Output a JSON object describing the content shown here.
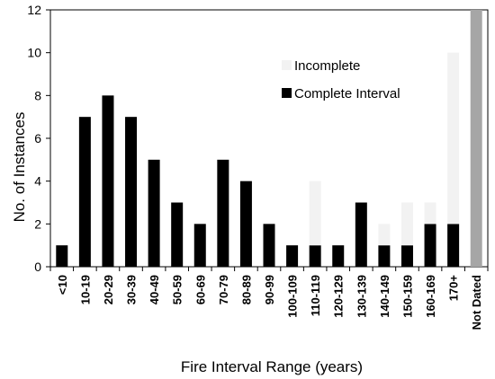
{
  "chart_data": {
    "type": "bar",
    "stacked": true,
    "title": "",
    "xlabel": "Fire Interval Range (years)",
    "ylabel": "No. of Instances",
    "ylim": [
      0,
      12
    ],
    "yticks": [
      0,
      2,
      4,
      6,
      8,
      10,
      12
    ],
    "grid": false,
    "legend_position": "top-right",
    "categories": [
      "<10",
      "10-19",
      "20-29",
      "30-39",
      "40-49",
      "50-59",
      "60-69",
      "70-79",
      "80-89",
      "90-99",
      "100-109",
      "110-119",
      "120-129",
      "130-139",
      "140-149",
      "150-159",
      "160-169",
      "170+",
      "Not Dated"
    ],
    "series": [
      {
        "name": "Complete Interval",
        "color": "#000000",
        "values": [
          1,
          7,
          8,
          7,
          5,
          3,
          2,
          5,
          4,
          2,
          1,
          1,
          1,
          3,
          1,
          1,
          2,
          2,
          0
        ]
      },
      {
        "name": "Incomplete",
        "color": "#f2f2f2",
        "values": [
          0,
          0,
          0,
          0,
          0,
          0,
          0,
          0,
          0,
          0,
          0,
          3,
          0,
          0,
          1,
          2,
          1,
          8,
          0
        ]
      },
      {
        "color": "#a6a6a6",
        "values": [
          0,
          0,
          0,
          0,
          0,
          0,
          0,
          0,
          0,
          0,
          0,
          0,
          0,
          0,
          0,
          0,
          0,
          0,
          12
        ]
      }
    ],
    "legend": [
      {
        "label": "Incomplete",
        "color": "#f2f2f2"
      },
      {
        "label": "Complete Interval",
        "color": "#000000"
      }
    ]
  }
}
